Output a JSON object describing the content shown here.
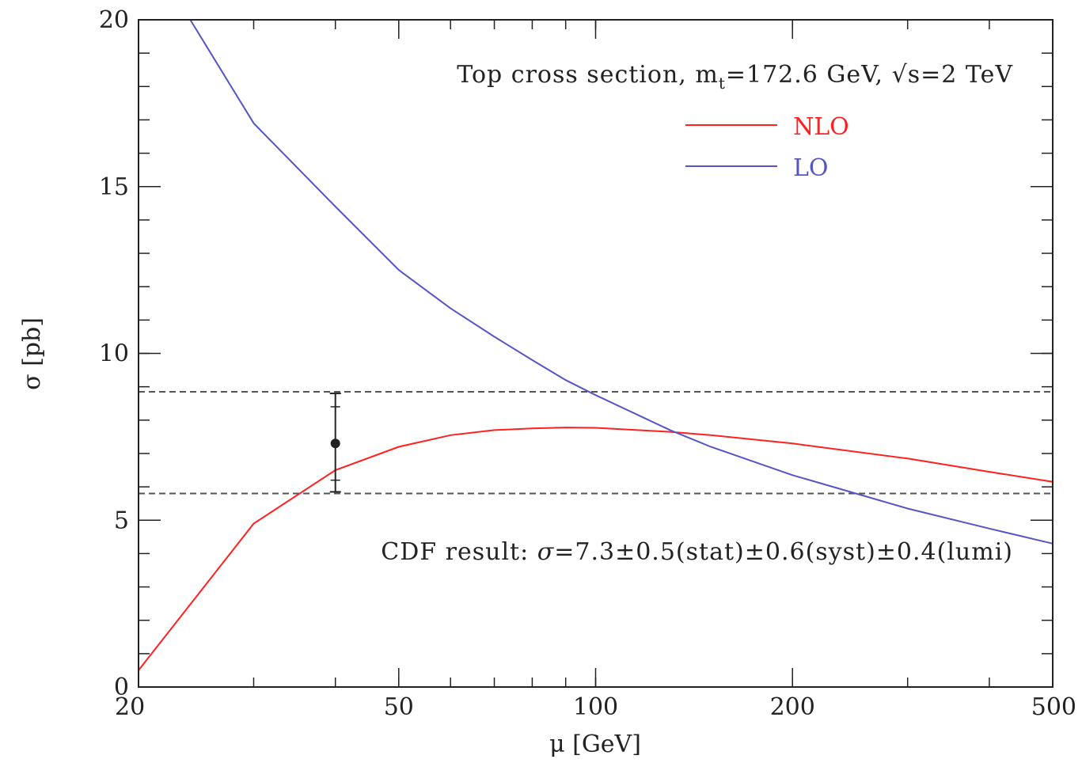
{
  "chart_data": {
    "type": "line",
    "title": "Top cross section, m_t=172.6 GeV, √s=2 TeV",
    "title_parts": {
      "prefix": "Top cross section, m",
      "subscript": "t",
      "suffix": "=172.6 GeV, √s=2 TeV"
    },
    "xlabel": "μ [GeV]",
    "ylabel": "σ [pb]",
    "x_scale": "log",
    "xlim": [
      20,
      500
    ],
    "ylim": [
      0,
      20
    ],
    "x_ticks": [
      {
        "value": 20,
        "label": "20"
      },
      {
        "value": 50,
        "label": "50"
      },
      {
        "value": 100,
        "label": "100"
      },
      {
        "value": 200,
        "label": "200"
      },
      {
        "value": 500,
        "label": "500"
      }
    ],
    "y_ticks": [
      {
        "value": 0,
        "label": "0"
      },
      {
        "value": 5,
        "label": "5"
      },
      {
        "value": 10,
        "label": "10"
      },
      {
        "value": 15,
        "label": "15"
      },
      {
        "value": 20,
        "label": "20"
      }
    ],
    "grid": false,
    "legend_position": "top-right",
    "series": [
      {
        "name": "NLO",
        "color": "#ff2020",
        "x": [
          20,
          30,
          40,
          50,
          60,
          70,
          80,
          90,
          100,
          130,
          150,
          200,
          300,
          400,
          500
        ],
        "y": [
          0.5,
          4.9,
          6.5,
          7.2,
          7.55,
          7.7,
          7.75,
          7.78,
          7.77,
          7.65,
          7.55,
          7.3,
          6.85,
          6.45,
          6.15
        ]
      },
      {
        "name": "LO",
        "color": "#5555c8",
        "x": [
          24,
          30,
          40,
          50,
          60,
          70,
          80,
          90,
          100,
          130,
          150,
          200,
          250,
          300,
          400,
          500
        ],
        "y": [
          20.0,
          16.9,
          14.4,
          12.5,
          11.35,
          10.5,
          9.8,
          9.2,
          8.75,
          7.7,
          7.2,
          6.35,
          5.8,
          5.35,
          4.75,
          4.3
        ]
      }
    ],
    "band": {
      "y_low": 5.8,
      "y_high": 8.85,
      "color": "#555555"
    },
    "data_point": {
      "x": 40,
      "y": 7.3,
      "stat": 0.5,
      "syst": 0.6,
      "lumi": 0.4,
      "total_err_low": 5.85,
      "total_err_high": 8.8,
      "inner_err_low": 6.2,
      "inner_err_high": 8.4,
      "color": "#222222"
    },
    "annotation": "CDF result: σ=7.3±0.5(stat)±0.6(syst)±0.4(lumi)",
    "annotation_parts": {
      "prefix": "CDF result: ",
      "sigma": "σ",
      "rest": "=7.3±0.5(stat)±0.6(syst)±0.4(lumi)"
    }
  }
}
